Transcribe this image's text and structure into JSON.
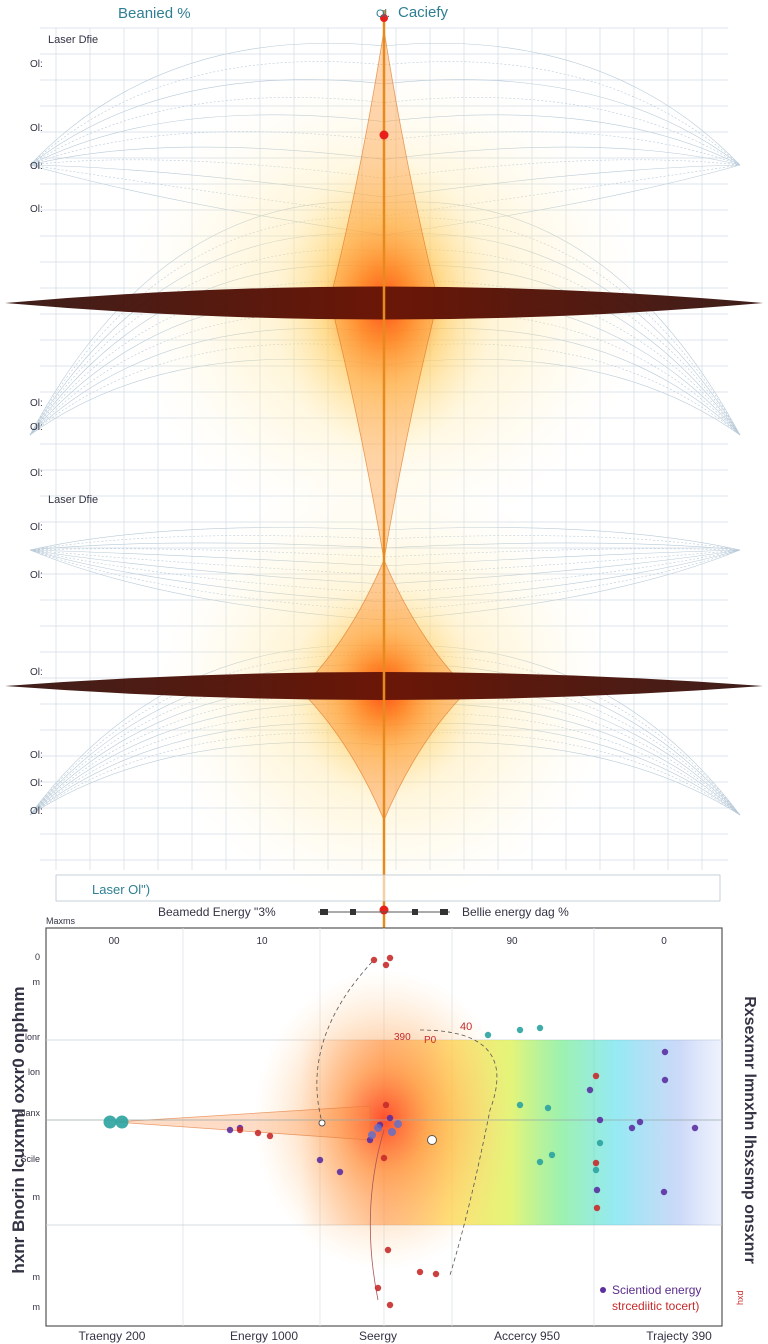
{
  "chart_data": [
    {
      "type": "area",
      "title_left": "Beanied %",
      "title_right": "Caciefy",
      "title_right_prefix": "Ol.",
      "panels": [
        {
          "label": "Laser Dfie",
          "tick_marks": [
            "Ol:",
            "Ol:",
            "Ol:",
            "Ol:",
            "Ol:",
            "Ol:",
            "Ol:"
          ]
        },
        {
          "label": "Laser Dfie",
          "tick_marks": [
            "Ol:",
            "Ol:",
            "Ol:",
            "Ol:",
            "Ol:",
            "Ol:"
          ]
        }
      ],
      "footer_label": "Laser Ol\")",
      "legend": {
        "left": "Beamedd Energy  \"3%",
        "right": "Bellie energy dag  %"
      },
      "colors": {
        "hot": "#ff2a10",
        "warm": "#ffa020",
        "glow": "#ffe080",
        "band": "#4a0d05",
        "mesh": "#b8cad8",
        "beam": "#e68a1e"
      }
    },
    {
      "type": "scatter",
      "corner_label": "Maxms",
      "x_tick_labels": [
        "00",
        "10",
        "",
        "90",
        "0"
      ],
      "x_labels": [
        "Traengy  200",
        "Energy  1000",
        "Seergy",
        "Accercy  950",
        "Trajecty  390"
      ],
      "y_label_left": "hxnr Bnorin lcuxnml oxxr0 onphnm",
      "y_label_right": "Rxsexnnr lmnxhn lhsxsmp onsxnrr",
      "y_tick_labels": [
        "0",
        "m",
        "lonr",
        "lon",
        "Blanx",
        "Scile",
        "m",
        "m",
        "m"
      ],
      "annotations": [
        "40",
        "390",
        "P0"
      ],
      "legend": [
        {
          "label": "Scientiod energy",
          "color": "#5b2fa0"
        },
        {
          "label": "strcediitic tocert)",
          "color": "#c62b2b"
        }
      ],
      "right_mini_label": "hxd",
      "series": [
        {
          "name": "Scientiod energy",
          "color": "#5b2fa0",
          "points": [
            [
              230,
              1130
            ],
            [
              240,
              1128
            ],
            [
              320,
              1160
            ],
            [
              340,
              1172
            ],
            [
              590,
              1090
            ],
            [
              600,
              1120
            ],
            [
              597,
              1190
            ],
            [
              665,
              1052
            ],
            [
              665,
              1080
            ],
            [
              664,
              1192
            ],
            [
              695,
              1128
            ],
            [
              640,
              1122
            ],
            [
              632,
              1128
            ],
            [
              380,
              1125
            ],
            [
              370,
              1140
            ],
            [
              390,
              1118
            ]
          ]
        },
        {
          "name": "strcediitic tocert)",
          "color": "#c62b2b",
          "points": [
            [
              374,
              960
            ],
            [
              390,
              958
            ],
            [
              386,
              965
            ],
            [
              240,
              1130
            ],
            [
              258,
              1133
            ],
            [
              270,
              1136
            ],
            [
              388,
              1250
            ],
            [
              378,
              1288
            ],
            [
              390,
              1305
            ],
            [
              420,
              1272
            ],
            [
              436,
              1274
            ],
            [
              386,
              1105
            ],
            [
              384,
              1158
            ],
            [
              596,
              1163
            ],
            [
              597,
              1208
            ],
            [
              596,
              1076
            ]
          ]
        },
        {
          "name": "",
          "color": "#2aa3a0",
          "points": [
            [
              110,
              1122
            ],
            [
              122,
              1122
            ],
            [
              520,
              1105
            ],
            [
              548,
              1108
            ],
            [
              540,
              1162
            ],
            [
              552,
              1155
            ],
            [
              488,
              1035
            ],
            [
              520,
              1030
            ],
            [
              540,
              1028
            ],
            [
              600,
              1143
            ],
            [
              596,
              1170
            ]
          ]
        }
      ]
    }
  ]
}
